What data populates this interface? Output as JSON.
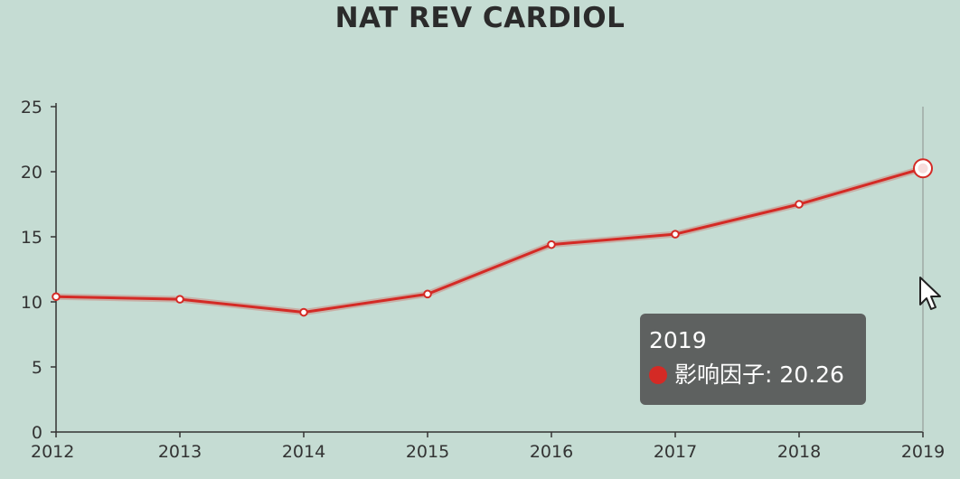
{
  "colors": {
    "background": "#c5dcd3",
    "series": "#d42a25",
    "axis": "#333333",
    "tooltip_bg": "#505050"
  },
  "tooltip": {
    "title": "2019",
    "series_label": "影响因子",
    "value": "20.26",
    "visible": true
  },
  "chart_data": {
    "type": "line",
    "title": "NAT REV CARDIOL",
    "x": [
      "2012",
      "2013",
      "2014",
      "2015",
      "2016",
      "2017",
      "2018",
      "2019"
    ],
    "series": [
      {
        "name": "影响因子",
        "values": [
          10.4,
          10.2,
          9.2,
          10.6,
          14.4,
          15.2,
          17.5,
          20.26
        ]
      }
    ],
    "ylim": [
      0,
      25
    ],
    "yticks": [
      0,
      5,
      10,
      15,
      20,
      25
    ],
    "xlabel": "",
    "ylabel": "",
    "grid": false,
    "legend": "none",
    "highlighted_index": 7
  },
  "icons": {
    "cursor": "mouse-pointer-icon"
  }
}
